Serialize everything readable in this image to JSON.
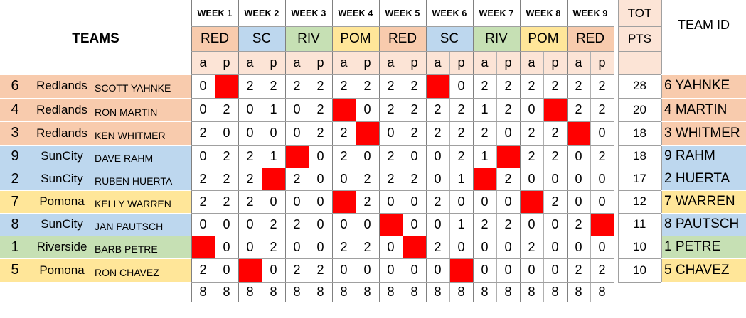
{
  "header": {
    "teams_title": "TEAMS",
    "tot_label": "TOT",
    "pts_label": "PTS",
    "team_id_label": "TEAM ID"
  },
  "weeks": [
    {
      "label": "WEEK 1",
      "opponent": "RED",
      "color": "#f8cbad"
    },
    {
      "label": "WEEK 2",
      "opponent": "SC",
      "color": "#bdd7ee"
    },
    {
      "label": "WEEK 3",
      "opponent": "RIV",
      "color": "#c6e0b4"
    },
    {
      "label": "WEEK 4",
      "opponent": "POM",
      "color": "#ffe699"
    },
    {
      "label": "WEEK 5",
      "opponent": "RED",
      "color": "#f8cbad"
    },
    {
      "label": "WEEK 6",
      "opponent": "SC",
      "color": "#bdd7ee"
    },
    {
      "label": "WEEK 7",
      "opponent": "RIV",
      "color": "#c6e0b4"
    },
    {
      "label": "WEEK 8",
      "opponent": "POM",
      "color": "#ffe699"
    },
    {
      "label": "WEEK 9",
      "opponent": "RED",
      "color": "#f8cbad"
    }
  ],
  "ap_labels": [
    "a",
    "p"
  ],
  "colors": {
    "redlands": "#f8cbad",
    "suncity": "#bdd7ee",
    "riverside": "#c6e0b4",
    "pomona": "#ffe699",
    "bye_cell": "#ff0000",
    "ap_row": "#fce4d6",
    "tot_header": "#fce4d6"
  },
  "teams": [
    {
      "seed": "6",
      "city": "Redlands",
      "player": "SCOTT YAHNKE",
      "group": "redlands",
      "scores": [
        "0",
        "X",
        "2",
        "2",
        "2",
        "2",
        "2",
        "2",
        "2",
        "2",
        "X",
        "0",
        "2",
        "2",
        "2",
        "2",
        "2",
        "2"
      ],
      "total": "28",
      "team_id": "6 YAHNKE"
    },
    {
      "seed": "4",
      "city": "Redlands",
      "player": "RON MARTIN",
      "group": "redlands",
      "scores": [
        "0",
        "2",
        "0",
        "1",
        "0",
        "2",
        "X",
        "0",
        "2",
        "2",
        "2",
        "2",
        "1",
        "2",
        "0",
        "X",
        "2",
        "2"
      ],
      "total": "20",
      "team_id": "4 MARTIN"
    },
    {
      "seed": "3",
      "city": "Redlands",
      "player": "KEN WHITMER",
      "group": "redlands",
      "scores": [
        "2",
        "0",
        "0",
        "0",
        "0",
        "2",
        "2",
        "X",
        "0",
        "2",
        "2",
        "2",
        "2",
        "0",
        "2",
        "2",
        "X",
        "0"
      ],
      "total": "18",
      "team_id": "3 WHITMER"
    },
    {
      "seed": "9",
      "city": "SunCity",
      "player": "DAVE RAHM",
      "group": "suncity",
      "scores": [
        "0",
        "2",
        "2",
        "1",
        "X",
        "0",
        "2",
        "0",
        "2",
        "0",
        "0",
        "2",
        "1",
        "X",
        "2",
        "2",
        "0",
        "2"
      ],
      "total": "18",
      "team_id": "9 RAHM"
    },
    {
      "seed": "2",
      "city": "SunCity",
      "player": "RUBEN HUERTA",
      "group": "suncity",
      "scores": [
        "2",
        "2",
        "2",
        "X",
        "2",
        "0",
        "0",
        "2",
        "2",
        "2",
        "0",
        "1",
        "X",
        "2",
        "0",
        "0",
        "0",
        "0"
      ],
      "total": "17",
      "team_id": "2 HUERTA"
    },
    {
      "seed": "7",
      "city": "Pomona",
      "player": "KELLY WARREN",
      "group": "pomona",
      "scores": [
        "2",
        "2",
        "2",
        "0",
        "0",
        "0",
        "X",
        "2",
        "0",
        "0",
        "2",
        "0",
        "0",
        "0",
        "X",
        "2",
        "0",
        "0"
      ],
      "total": "12",
      "team_id": "7 WARREN"
    },
    {
      "seed": "8",
      "city": "SunCity",
      "player": "JAN PAUTSCH",
      "group": "suncity",
      "scores": [
        "0",
        "0",
        "0",
        "2",
        "2",
        "0",
        "0",
        "0",
        "X",
        "0",
        "0",
        "1",
        "2",
        "2",
        "0",
        "0",
        "2",
        "X"
      ],
      "total": "11",
      "team_id": "8 PAUTSCH"
    },
    {
      "seed": "1",
      "city": "Riverside",
      "player": "BARB PETRE",
      "group": "riverside",
      "scores": [
        "X",
        "0",
        "0",
        "2",
        "0",
        "0",
        "2",
        "2",
        "0",
        "X",
        "2",
        "0",
        "0",
        "0",
        "2",
        "0",
        "0",
        "0"
      ],
      "total": "10",
      "team_id": "1 PETRE"
    },
    {
      "seed": "5",
      "city": "Pomona",
      "player": "RON CHAVEZ",
      "group": "pomona",
      "scores": [
        "2",
        "0",
        "X",
        "0",
        "2",
        "2",
        "0",
        "0",
        "0",
        "0",
        "0",
        "X",
        "0",
        "0",
        "0",
        "0",
        "2",
        "2"
      ],
      "total": "10",
      "team_id": "5 CHAVEZ"
    }
  ],
  "footer_counts": [
    "8",
    "8",
    "8",
    "8",
    "8",
    "8",
    "8",
    "8",
    "8",
    "8",
    "8",
    "8",
    "8",
    "8",
    "8",
    "8",
    "8",
    "8"
  ]
}
